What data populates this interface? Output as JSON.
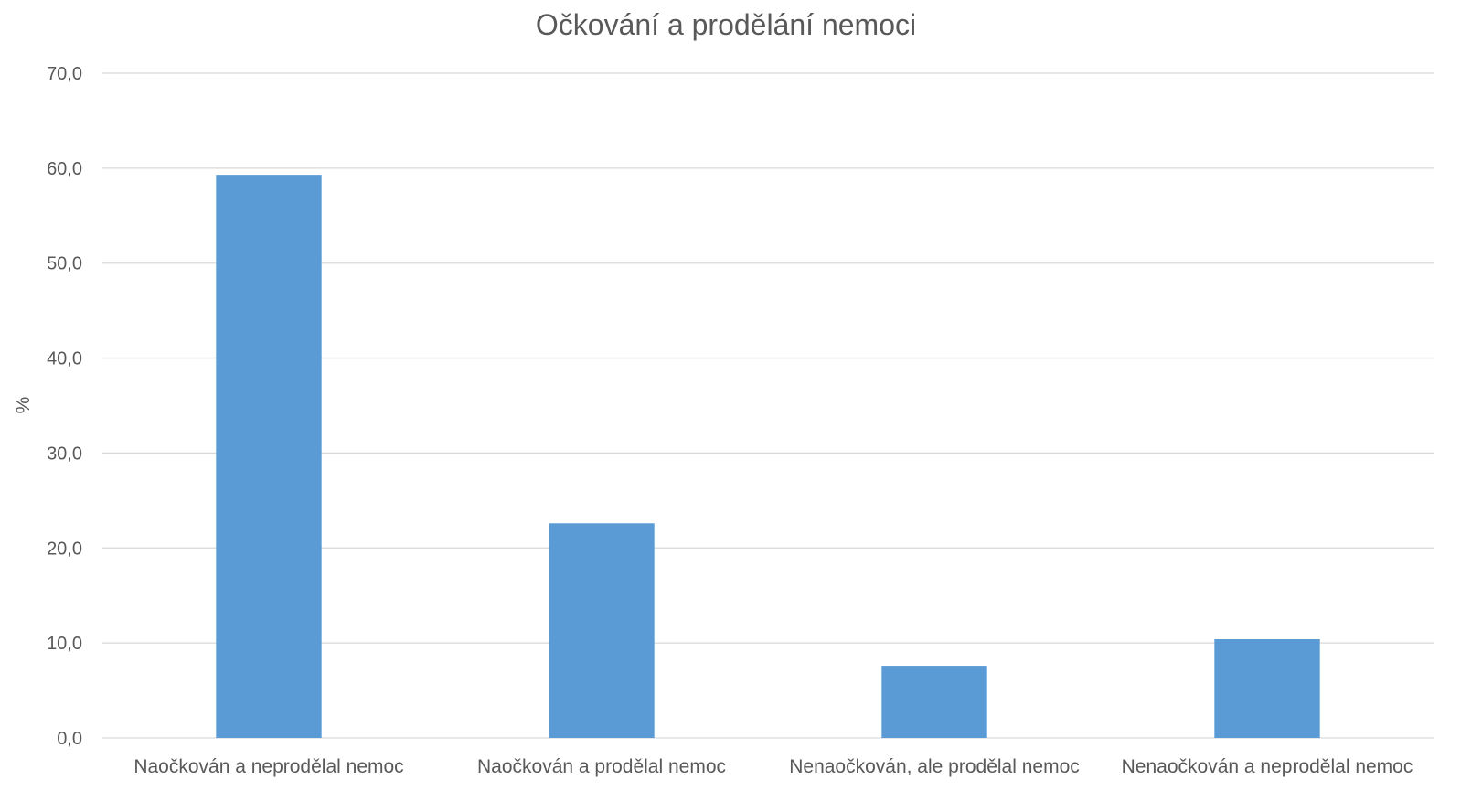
{
  "chart_data": {
    "type": "bar",
    "title": "Očkování a prodělání nemoci",
    "ylabel": "%",
    "xlabel": "",
    "categories": [
      "Naočkován a neprodělal nemoc",
      "Naočkován a prodělal nemoc",
      "Nenaočkován, ale prodělal nemoc",
      "Nenaočkován a neprodělal nemoc"
    ],
    "values": [
      59.3,
      22.6,
      7.6,
      10.4
    ],
    "ylim": [
      0,
      70
    ],
    "yticks": [
      0,
      10,
      20,
      30,
      40,
      50,
      60,
      70
    ],
    "ytick_labels": [
      "0,0",
      "10,0",
      "20,0",
      "30,0",
      "40,0",
      "50,0",
      "60,0",
      "70,0"
    ],
    "grid": true,
    "legend": "none",
    "bar_color": "#5b9bd5"
  }
}
